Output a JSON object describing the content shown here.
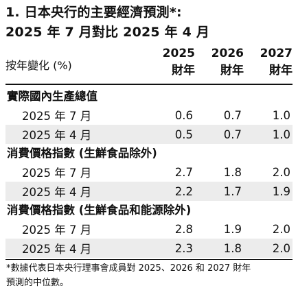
{
  "title": {
    "line1": "1. 日本央行的主要經濟預測*:",
    "line2": "2025 年 7 月對比 2025 年 4 月"
  },
  "header": {
    "label": "按年變化 (%)",
    "years": [
      {
        "year": "2025",
        "sub": "財年"
      },
      {
        "year": "2026",
        "sub": "財年"
      },
      {
        "year": "2027",
        "sub": "財年"
      }
    ]
  },
  "sections": [
    {
      "title": "實際國內生產總值",
      "rows": [
        {
          "label": "2025 年 7 月",
          "values": [
            "0.6",
            "0.7",
            "1.0"
          ]
        },
        {
          "label": "2025 年 4 月",
          "values": [
            "0.5",
            "0.7",
            "1.0"
          ]
        }
      ]
    },
    {
      "title": "消費價格指數 (生鮮食品除外)",
      "rows": [
        {
          "label": "2025 年 7 月",
          "values": [
            "2.7",
            "1.8",
            "2.0"
          ]
        },
        {
          "label": "2025 年 4 月",
          "values": [
            "2.2",
            "1.7",
            "1.9"
          ]
        }
      ]
    },
    {
      "title": "消費價格指數 (生鮮食品和能源除外)",
      "rows": [
        {
          "label": "2025 年 7 月",
          "values": [
            "2.8",
            "1.9",
            "2.0"
          ]
        },
        {
          "label": "2025 年 4 月",
          "values": [
            "2.3",
            "1.8",
            "2.0"
          ]
        }
      ]
    }
  ],
  "footnote": {
    "line1": "*數據代表日本央行理事會成員對 2025、2026 和 2027 財年",
    "line2": "預測的中位數。"
  }
}
